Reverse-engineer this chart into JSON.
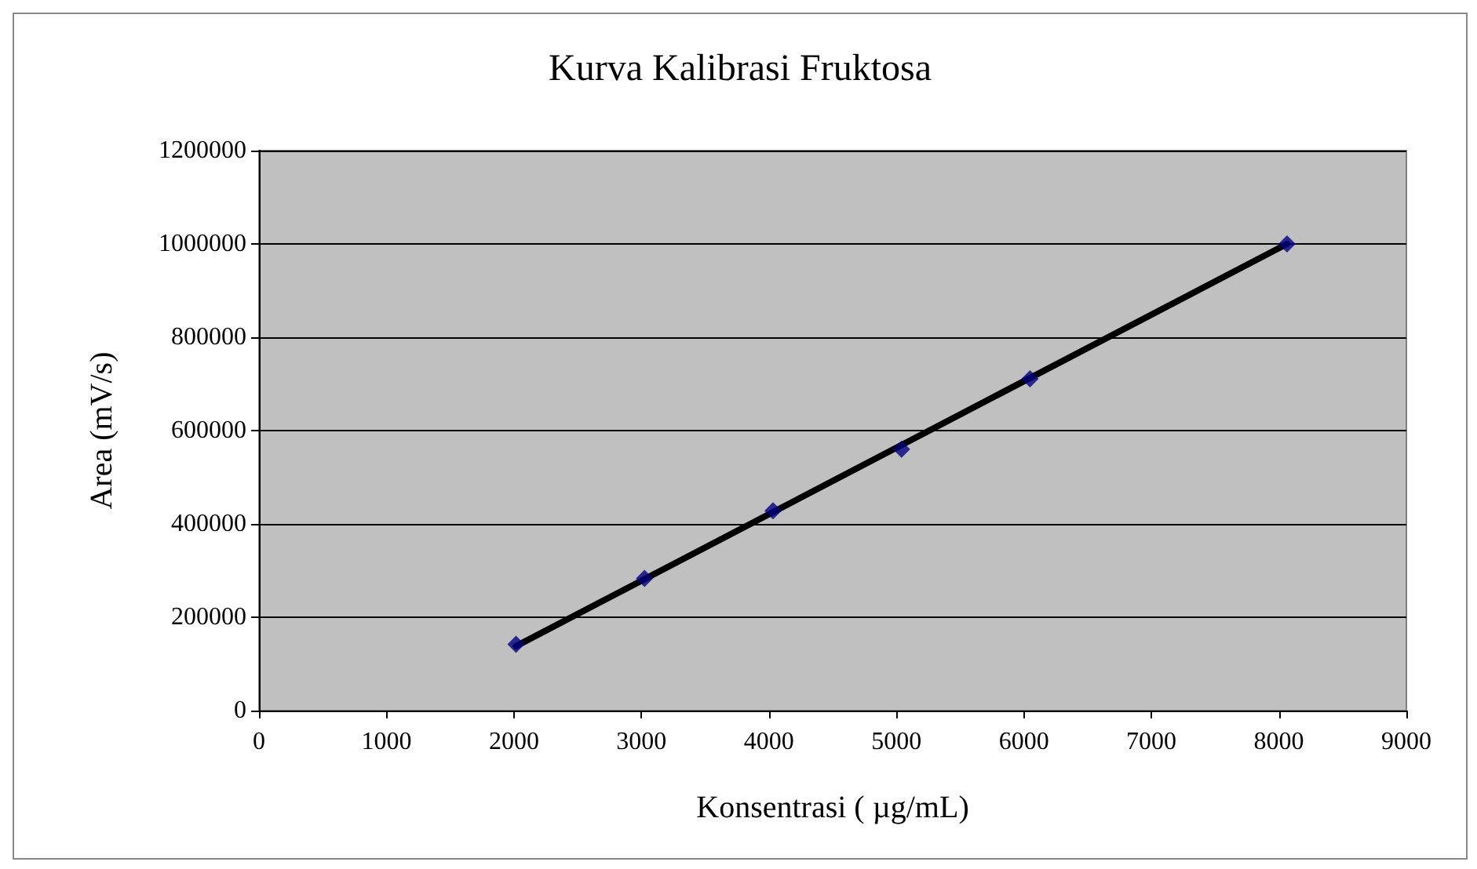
{
  "chart_data": {
    "type": "scatter",
    "title": "Kurva Kalibrasi Fruktosa",
    "xlabel": "Konsentrasi ( µg/mL)",
    "ylabel": "Area (mV/s)",
    "series": [
      {
        "color": "#000080",
        "marker": "diamond",
        "x": [
          2016,
          3024,
          4032,
          5040,
          6048,
          8064
        ],
        "values": [
          142000,
          283000,
          428000,
          560000,
          711000,
          1000000
        ]
      },
      {
        "type": "line",
        "color": "#000000",
        "marker": "none",
        "line_style": "solid",
        "x": [
          2016,
          8064
        ],
        "values": [
          138000,
          1000000
        ]
      }
    ],
    "xlim": [
      0,
      9000
    ],
    "xticks": [
      0,
      1000,
      2000,
      3000,
      4000,
      5000,
      6000,
      7000,
      8000,
      9000
    ],
    "ylim": [
      0,
      1200000
    ],
    "yticks": [
      0,
      200000,
      400000,
      600000,
      800000,
      1000000,
      1200000
    ],
    "grid": "y"
  }
}
